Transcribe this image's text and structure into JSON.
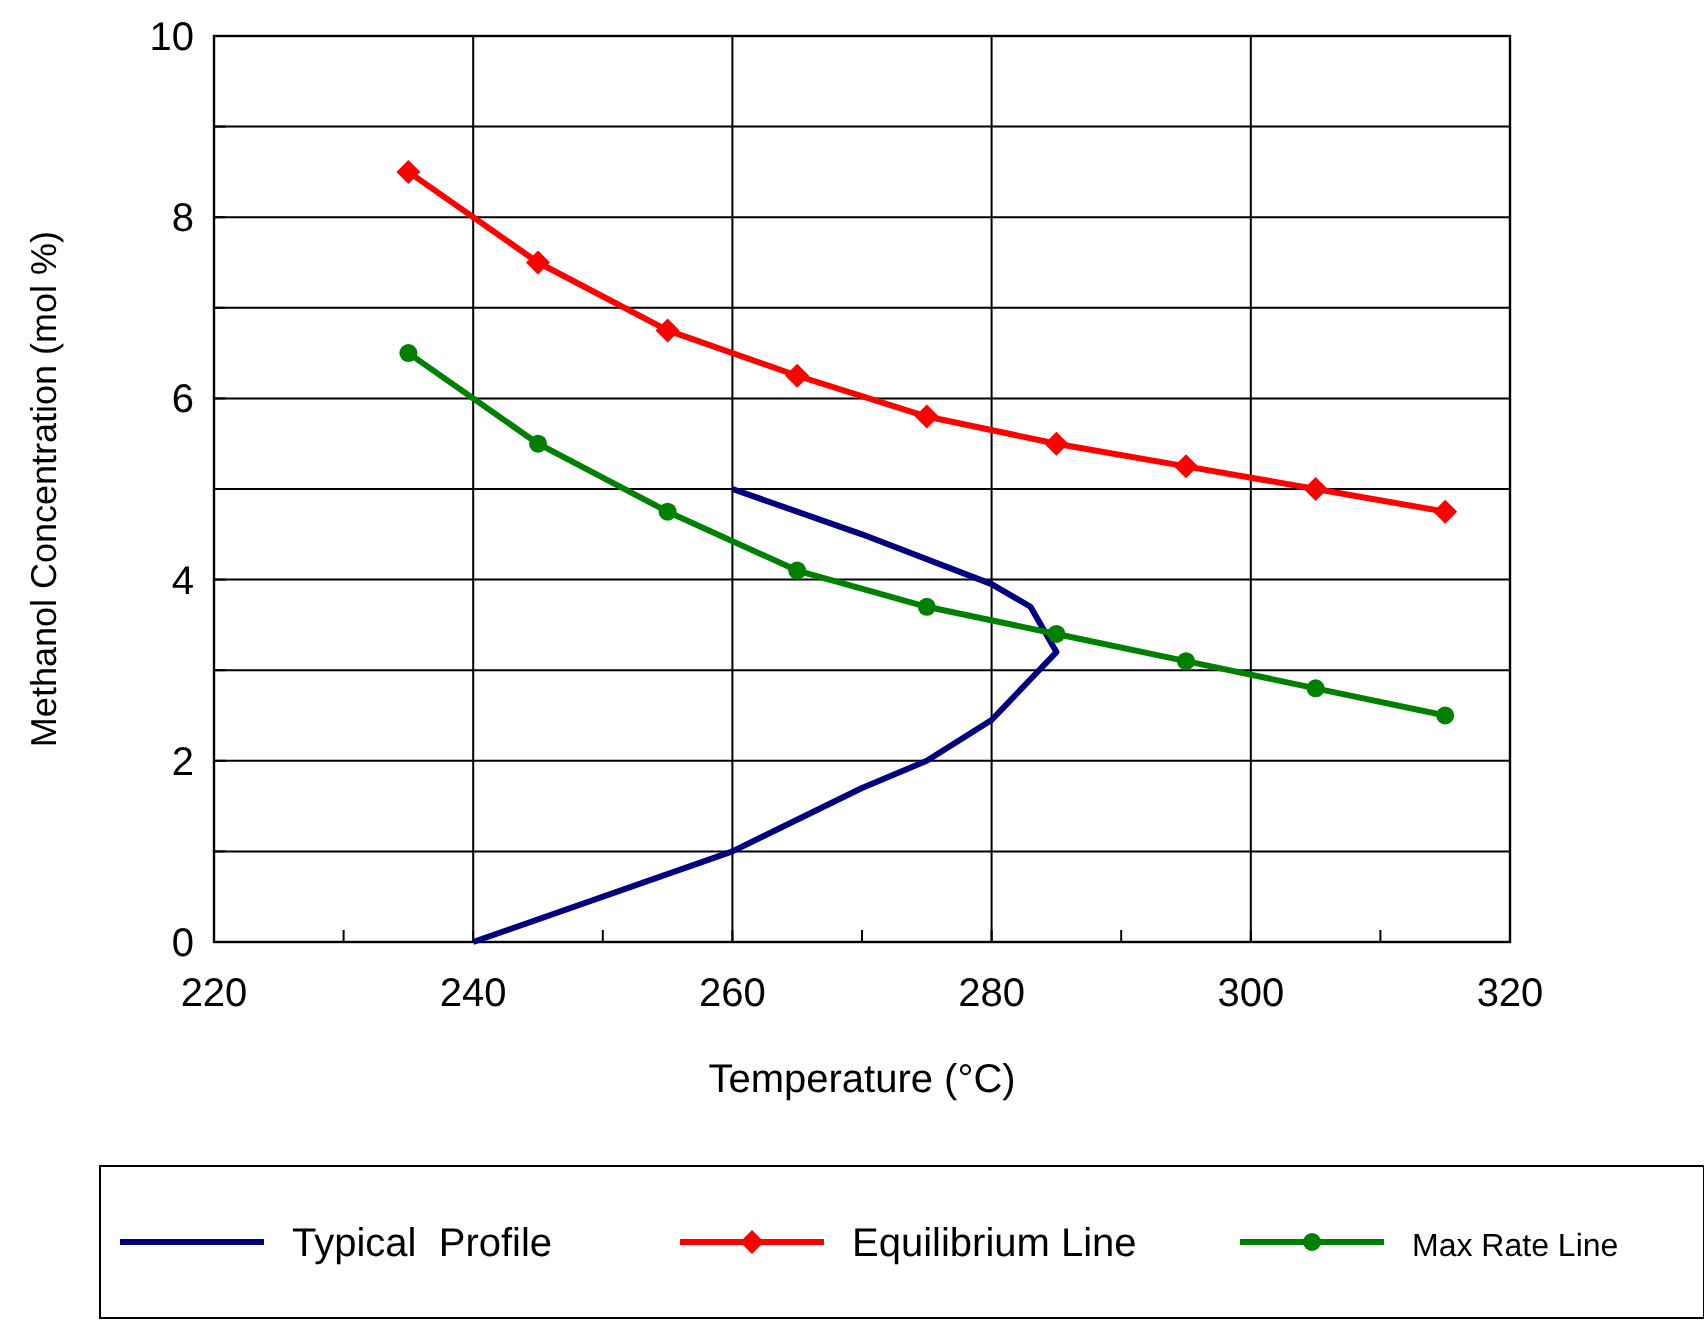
{
  "chart_data": {
    "type": "line",
    "xlabel": "Temperature (°C)",
    "ylabel": "Methanol Concentration (mol %)",
    "xlim": [
      220,
      320
    ],
    "ylim": [
      0,
      10
    ],
    "xticks": [
      220,
      {
        "value": 230,
        "label": null
      },
      240,
      {
        "value": 250,
        "label": null
      },
      260,
      {
        "value": 270,
        "label": null
      },
      280,
      {
        "value": 290,
        "label": null
      },
      300,
      {
        "value": 310,
        "label": null
      },
      320
    ],
    "yticks": [
      0,
      {
        "value": 1,
        "label": null
      },
      2,
      {
        "value": 3,
        "label": null
      },
      4,
      {
        "value": 5,
        "label": null
      },
      6,
      {
        "value": 7,
        "label": null
      },
      8,
      {
        "value": 9,
        "label": null
      },
      10
    ],
    "grid": true,
    "legend": "bottom",
    "series": [
      {
        "name": "Typical  Profile",
        "color": "#000080",
        "marker": "none",
        "x": [
          240,
          260,
          270,
          275,
          280,
          283,
          285,
          283,
          280,
          270,
          260
        ],
        "values": [
          0,
          1.0,
          1.7,
          2.0,
          2.45,
          2.9,
          3.2,
          3.7,
          3.95,
          4.5,
          5.0
        ]
      },
      {
        "name": "Equilibrium Line",
        "color": "#ff0000",
        "marker": "diamond",
        "x": [
          235,
          245,
          255,
          265,
          275,
          285,
          295,
          305,
          315
        ],
        "values": [
          8.5,
          7.5,
          6.75,
          6.25,
          5.8,
          5.5,
          5.25,
          5.0,
          4.75
        ]
      },
      {
        "name": "Max Rate Line",
        "color": "#008000",
        "marker": "circle",
        "x": [
          235,
          245,
          255,
          265,
          275,
          285,
          295,
          305,
          315
        ],
        "values": [
          6.5,
          5.5,
          4.75,
          4.1,
          3.7,
          3.4,
          3.1,
          2.8,
          2.5
        ]
      }
    ]
  }
}
